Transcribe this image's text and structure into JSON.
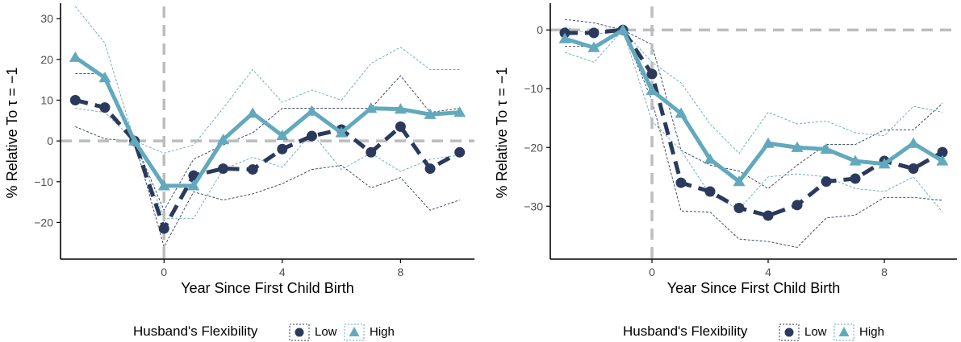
{
  "colors": {
    "low": "#2b3a5c",
    "high": "#62a9bd",
    "ref_line": "#bdbdbd"
  },
  "chart_data": [
    {
      "type": "line",
      "xlabel": "Year Since First Child Birth",
      "ylabel": "% Relative To τ = −1",
      "xlim": [
        -3.5,
        10.5
      ],
      "ylim": [
        -29,
        33
      ],
      "x_ticks": [
        0,
        4,
        8
      ],
      "x_tick_labels": [
        "0",
        "4",
        "8"
      ],
      "y_ticks": [
        -20,
        -10,
        0,
        10,
        20,
        30
      ],
      "y_tick_labels": [
        "−20",
        "−10",
        "0",
        "10",
        "20",
        "30"
      ],
      "ref_lines": {
        "x": 0,
        "y": 0
      },
      "x": [
        -3,
        -2,
        -1,
        0,
        1,
        2,
        3,
        4,
        5,
        6,
        7,
        8,
        9,
        10
      ],
      "series": [
        {
          "name": "Low",
          "marker": "circle",
          "values": [
            10,
            8.2,
            0,
            -21.5,
            -8.5,
            -6.8,
            -7,
            -2,
            1.2,
            2.8,
            -2.8,
            3.5,
            -6.8,
            -2.8
          ],
          "ci_upper": [
            16.5,
            16.5,
            0,
            -17,
            -4.5,
            -1,
            2,
            8,
            8,
            8,
            8,
            16,
            7,
            8
          ],
          "ci_lower": [
            3.5,
            0.5,
            0,
            -26,
            -12.5,
            -14.5,
            -13,
            -10.5,
            -7,
            -6,
            -11.5,
            -9,
            -17,
            -14.5
          ]
        },
        {
          "name": "High",
          "marker": "triangle",
          "values": [
            20.5,
            15.5,
            0,
            -11,
            -11,
            0.3,
            6.8,
            1.3,
            7.3,
            2,
            8,
            7.8,
            6.5,
            7
          ],
          "ci_upper": [
            33,
            24,
            0,
            -3,
            -1,
            8,
            17.5,
            9.5,
            12.5,
            10,
            19,
            23,
            17.5,
            17.5
          ],
          "ci_lower": [
            8,
            7,
            0,
            -19,
            -19,
            -7,
            -4,
            -6.5,
            2,
            -7,
            -3,
            -7.5,
            -4.5,
            -3.5
          ]
        }
      ]
    },
    {
      "type": "line",
      "xlabel": "Year Since First Child Birth",
      "ylabel": "% Relative To τ = −1",
      "xlim": [
        -3.5,
        10.5
      ],
      "ylim": [
        -39,
        4
      ],
      "x_ticks": [
        0,
        4,
        8
      ],
      "x_tick_labels": [
        "0",
        "4",
        "8"
      ],
      "y_ticks": [
        -30,
        -20,
        -10,
        0
      ],
      "y_tick_labels": [
        "−30",
        "−20",
        "−10",
        "0"
      ],
      "ref_lines": {
        "x": 0,
        "y": 0
      },
      "x": [
        -3,
        -2,
        -1,
        0,
        1,
        2,
        3,
        4,
        5,
        6,
        7,
        8,
        9,
        10
      ],
      "series": [
        {
          "name": "Low",
          "marker": "circle",
          "values": [
            -0.5,
            -0.5,
            0,
            -7.5,
            -26,
            -27.5,
            -30.3,
            -31.6,
            -29.8,
            -25.8,
            -25.3,
            -22.3,
            -23.6,
            -20.8
          ],
          "ci_upper": [
            1.8,
            1.2,
            0,
            -2.5,
            -20.5,
            -23,
            -24,
            -27,
            -23,
            -19.5,
            -19.5,
            -17,
            -17,
            -12.5
          ],
          "ci_lower": [
            -2.8,
            -2.8,
            0,
            -12,
            -30.8,
            -31,
            -35.6,
            -36,
            -37,
            -32,
            -31.5,
            -28.5,
            -28.5,
            -29
          ]
        },
        {
          "name": "High",
          "marker": "triangle",
          "values": [
            -1.5,
            -3,
            0,
            -10.3,
            -14.2,
            -22,
            -25.8,
            -19.3,
            -20,
            -20.3,
            -22.3,
            -22.8,
            -19.3,
            -22.3
          ],
          "ci_upper": [
            0.5,
            -0.8,
            0,
            -5.5,
            -9,
            -16,
            -21,
            -14,
            -16,
            -15.5,
            -17.5,
            -18,
            -13,
            -14
          ],
          "ci_lower": [
            -3.8,
            -5.5,
            0,
            -15.5,
            -20.5,
            -28,
            -30.5,
            -25,
            -24.5,
            -25,
            -27,
            -27.5,
            -25,
            -31
          ]
        }
      ]
    }
  ],
  "legend": {
    "title": "Husband's Flexibility",
    "items": [
      "Low",
      "High"
    ]
  }
}
